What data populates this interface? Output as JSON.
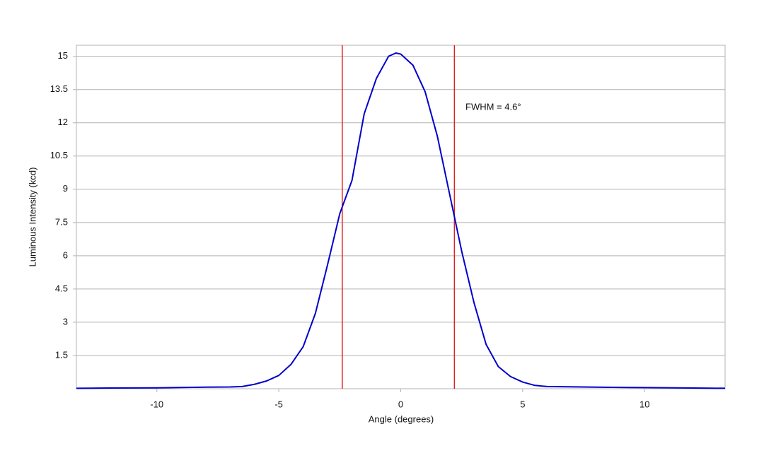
{
  "chart_data": {
    "type": "line",
    "x_label": "Angle (degrees)",
    "y_label": "Luminous Intensity (kcd)",
    "annotation": "FWHM = 4.6°",
    "x": [
      -13.3,
      -12,
      -10,
      -8,
      -7,
      -6.5,
      -6,
      -5.5,
      -5,
      -4.5,
      -4,
      -3.5,
      -3,
      -2.5,
      -2,
      -1.5,
      -1,
      -0.5,
      -0.2,
      0,
      0.5,
      1,
      1.5,
      2,
      2.5,
      3,
      3.5,
      4,
      4.5,
      5,
      5.5,
      6,
      8,
      10,
      12,
      13.3
    ],
    "series": [
      {
        "color": "#0000cc",
        "values": [
          0.02,
          0.03,
          0.04,
          0.07,
          0.08,
          0.1,
          0.2,
          0.35,
          0.6,
          1.1,
          1.9,
          3.4,
          5.6,
          7.9,
          9.4,
          12.4,
          14.0,
          15.0,
          15.15,
          15.1,
          14.6,
          13.4,
          11.4,
          8.8,
          6.2,
          3.9,
          2.0,
          1.0,
          0.55,
          0.3,
          0.15,
          0.1,
          0.07,
          0.05,
          0.03,
          0.02
        ]
      }
    ],
    "vlines": {
      "values": [
        -2.4,
        2.2
      ],
      "color": "#e02020"
    },
    "xlim": [
      -13.3,
      13.3
    ],
    "xticks": [
      -10,
      -5,
      0,
      5,
      10
    ],
    "ylim": [
      0,
      15.5
    ],
    "yticks": [
      1.5,
      3,
      4.5,
      6,
      7.5,
      9,
      10.5,
      12,
      13.5,
      15
    ],
    "grid": true
  }
}
